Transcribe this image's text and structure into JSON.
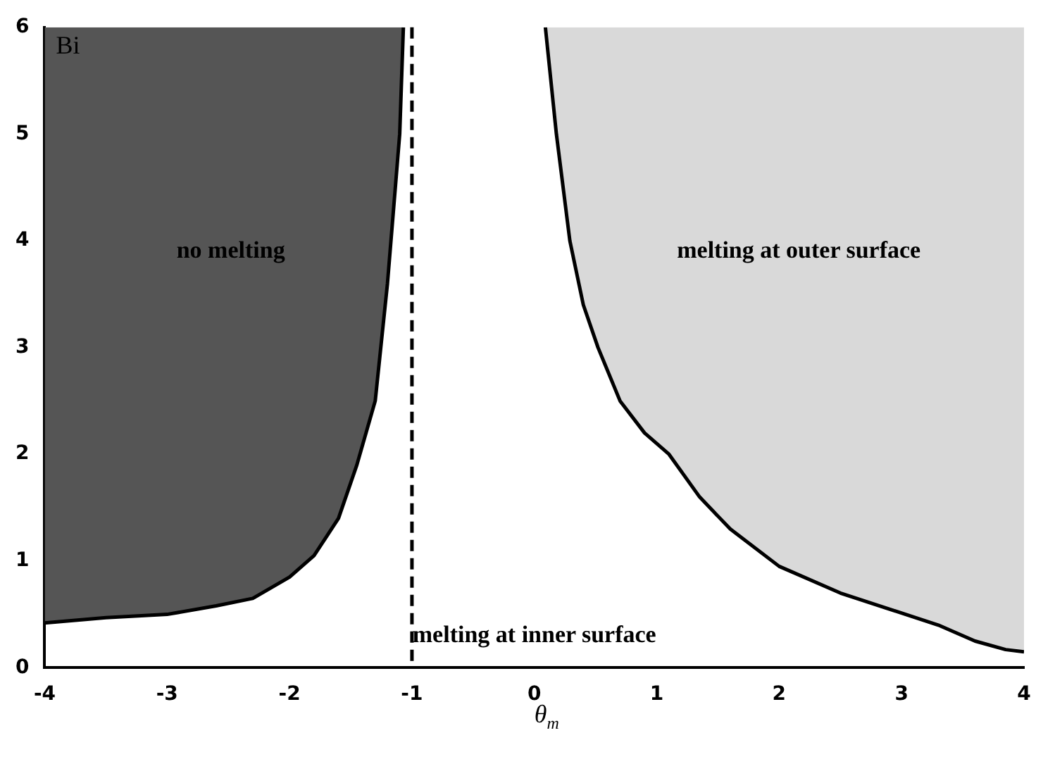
{
  "chart_data": {
    "type": "area",
    "xlabel": "θ$_{m}$",
    "ylabel": "Bi",
    "series": [
      {
        "color": "#555555",
        "x": [
          -4,
          -4,
          -3.5,
          -3,
          -2.6,
          -2.3,
          -2,
          -1.8,
          -1.6,
          -1.45,
          -1.3,
          -1.2,
          -1.15,
          -1.1,
          -1.07
        ],
        "values": [
          6,
          0.42,
          0.47,
          0.5,
          0.58,
          0.65,
          0.85,
          1.05,
          1.4,
          1.9,
          2.5,
          3.6,
          4.3,
          5.0,
          6.0
        ]
      },
      {
        "color": "#d9d9d9",
        "x": [
          0.09,
          0.18,
          0.29,
          0.4,
          0.52,
          0.7,
          0.9,
          1.1,
          1.35,
          1.6,
          2.0,
          2.5,
          2.9,
          3.3,
          3.6,
          3.85,
          4.0,
          4.0
        ],
        "values": [
          6.0,
          5.0,
          4.0,
          3.4,
          3.0,
          2.5,
          2.2,
          2.0,
          1.6,
          1.3,
          0.95,
          0.7,
          0.55,
          0.4,
          0.25,
          0.17,
          0.15,
          6
        ]
      }
    ],
    "xlim": [
      -4,
      4
    ],
    "xticks": [
      -4,
      -3,
      -2,
      -1,
      0,
      1,
      2,
      3,
      4
    ],
    "ylim": [
      0,
      6
    ],
    "yticks": [
      0,
      1,
      2,
      3,
      4,
      5,
      6
    ],
    "ref_lines": [
      {
        "axis": "x",
        "value": -1,
        "line_style": "dashed",
        "color": "#000000"
      }
    ],
    "annotations": [
      "no melting",
      "melting at outer surface",
      "melting at inner surface"
    ],
    "grid": false,
    "legend": false
  }
}
